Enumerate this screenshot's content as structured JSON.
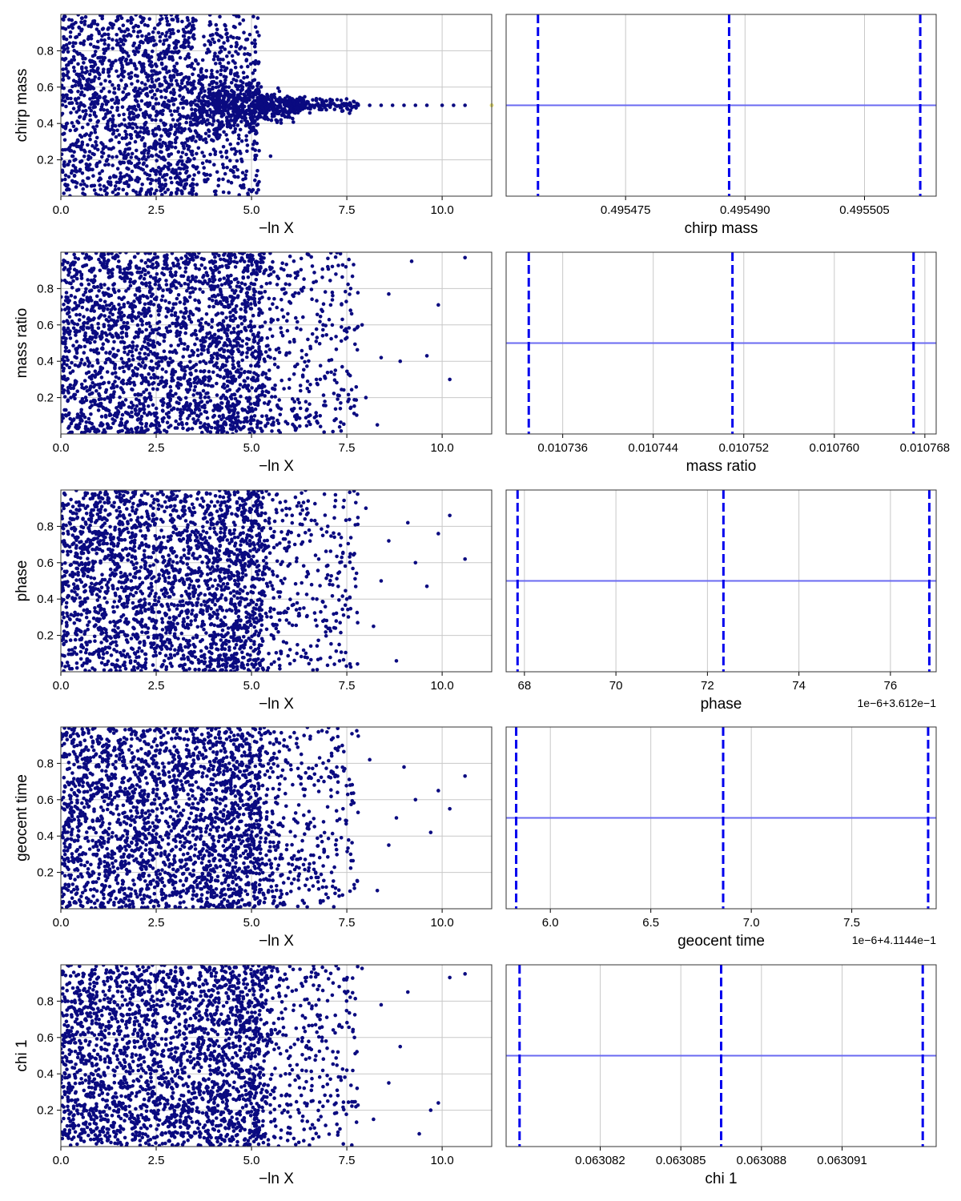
{
  "chart_data": [
    {
      "type": "scatter",
      "row": 0,
      "panel": "trace",
      "xlabel": "−ln X",
      "ylabel": "chirp mass",
      "xlim": [
        0,
        11.3
      ],
      "ylim": [
        0,
        1
      ],
      "xticks": [
        0,
        2.5,
        5,
        7.5,
        10
      ],
      "xtick_labels": [
        "0.0",
        "2.5",
        "5.0",
        "7.5",
        "10.0"
      ],
      "yticks": [
        0.2,
        0.4,
        0.6,
        0.8
      ],
      "ytick_labels": [
        "0.2",
        "0.4",
        "0.6",
        "0.8"
      ],
      "grid": true,
      "point_color": "#0a0a80",
      "converged_point": {
        "x": 11.3,
        "y": 0.5
      },
      "tail_points": [
        {
          "x": 5.6,
          "y": 0.56
        },
        {
          "x": 5.8,
          "y": 0.53
        },
        {
          "x": 6.0,
          "y": 0.51
        },
        {
          "x": 6.3,
          "y": 0.505
        },
        {
          "x": 6.6,
          "y": 0.5
        },
        {
          "x": 6.9,
          "y": 0.5
        },
        {
          "x": 7.2,
          "y": 0.5
        },
        {
          "x": 7.5,
          "y": 0.5
        },
        {
          "x": 7.8,
          "y": 0.5
        },
        {
          "x": 8.1,
          "y": 0.5
        },
        {
          "x": 8.4,
          "y": 0.5
        },
        {
          "x": 8.7,
          "y": 0.5
        },
        {
          "x": 9.0,
          "y": 0.5
        },
        {
          "x": 9.3,
          "y": 0.5
        },
        {
          "x": 9.6,
          "y": 0.5
        },
        {
          "x": 10.0,
          "y": 0.5
        },
        {
          "x": 10.3,
          "y": 0.5
        },
        {
          "x": 10.6,
          "y": 0.5
        },
        {
          "x": 4.8,
          "y": 0.9
        },
        {
          "x": 5.5,
          "y": 0.22
        },
        {
          "x": 5.2,
          "y": 0.25
        }
      ]
    },
    {
      "type": "line",
      "row": 0,
      "panel": "posterior",
      "xlabel": "chirp mass",
      "xlim": [
        0.49546,
        0.495514
      ],
      "xticks": [
        0.495475,
        0.49549,
        0.495505
      ],
      "xtick_labels": [
        "0.495475",
        "0.495490",
        "0.495505"
      ],
      "offset_text": "",
      "dashed_lines": [
        0.495464,
        0.495488,
        0.495512
      ],
      "horizontal_line_y": 0.5,
      "ylim": [
        0,
        1
      ]
    },
    {
      "type": "scatter",
      "row": 1,
      "panel": "trace",
      "xlabel": "−ln X",
      "ylabel": "mass ratio",
      "xlim": [
        0,
        11.3
      ],
      "ylim": [
        0,
        1
      ],
      "xticks": [
        0,
        2.5,
        5,
        7.5,
        10
      ],
      "xtick_labels": [
        "0.0",
        "2.5",
        "5.0",
        "7.5",
        "10.0"
      ],
      "yticks": [
        0.2,
        0.4,
        0.6,
        0.8
      ],
      "ytick_labels": [
        "0.2",
        "0.4",
        "0.6",
        "0.8"
      ],
      "grid": true,
      "point_color": "#0a0a80",
      "tail_points": [
        {
          "x": 10.6,
          "y": 0.97
        },
        {
          "x": 9.9,
          "y": 0.71
        },
        {
          "x": 10.2,
          "y": 0.3
        },
        {
          "x": 9.6,
          "y": 0.43
        },
        {
          "x": 9.2,
          "y": 0.95
        },
        {
          "x": 8.6,
          "y": 0.77
        },
        {
          "x": 8.4,
          "y": 0.42
        },
        {
          "x": 8.0,
          "y": 0.2
        },
        {
          "x": 8.9,
          "y": 0.4
        },
        {
          "x": 7.9,
          "y": 0.6
        },
        {
          "x": 7.6,
          "y": 0.8
        },
        {
          "x": 7.2,
          "y": 0.35
        },
        {
          "x": 7.0,
          "y": 0.92
        },
        {
          "x": 6.8,
          "y": 0.1
        },
        {
          "x": 6.6,
          "y": 0.55
        },
        {
          "x": 8.3,
          "y": 0.05
        }
      ]
    },
    {
      "type": "line",
      "row": 1,
      "panel": "posterior",
      "xlabel": "mass ratio",
      "xlim": [
        0.010731,
        0.010769
      ],
      "xticks": [
        0.010736,
        0.010744,
        0.010752,
        0.01076,
        0.010768
      ],
      "xtick_labels": [
        "0.010736",
        "0.010744",
        "0.010752",
        "0.010760",
        "0.010768"
      ],
      "offset_text": "",
      "dashed_lines": [
        0.010733,
        0.010751,
        0.010767
      ],
      "horizontal_line_y": 0.5,
      "ylim": [
        0,
        1
      ]
    },
    {
      "type": "scatter",
      "row": 2,
      "panel": "trace",
      "xlabel": "−ln X",
      "ylabel": "phase",
      "xlim": [
        0,
        11.3
      ],
      "ylim": [
        0,
        1
      ],
      "xticks": [
        0,
        2.5,
        5,
        7.5,
        10
      ],
      "xtick_labels": [
        "0.0",
        "2.5",
        "5.0",
        "7.5",
        "10.0"
      ],
      "yticks": [
        0.2,
        0.4,
        0.6,
        0.8
      ],
      "ytick_labels": [
        "0.2",
        "0.4",
        "0.6",
        "0.8"
      ],
      "grid": true,
      "point_color": "#0a0a80",
      "tail_points": [
        {
          "x": 10.6,
          "y": 0.62
        },
        {
          "x": 10.2,
          "y": 0.86
        },
        {
          "x": 9.9,
          "y": 0.76
        },
        {
          "x": 9.6,
          "y": 0.47
        },
        {
          "x": 9.1,
          "y": 0.82
        },
        {
          "x": 9.3,
          "y": 0.6
        },
        {
          "x": 8.8,
          "y": 0.06
        },
        {
          "x": 8.6,
          "y": 0.72
        },
        {
          "x": 8.4,
          "y": 0.5
        },
        {
          "x": 8.2,
          "y": 0.25
        },
        {
          "x": 8.0,
          "y": 0.9
        },
        {
          "x": 7.7,
          "y": 0.65
        },
        {
          "x": 7.5,
          "y": 0.4
        },
        {
          "x": 7.3,
          "y": 0.15
        },
        {
          "x": 7.0,
          "y": 0.8
        }
      ]
    },
    {
      "type": "line",
      "row": 2,
      "panel": "posterior",
      "xlabel": "phase",
      "xlim": [
        67.6,
        77.0
      ],
      "xticks": [
        68,
        70,
        72,
        74,
        76
      ],
      "xtick_labels": [
        "68",
        "70",
        "72",
        "74",
        "76"
      ],
      "offset_text": "1e−6+3.612e−1",
      "dashed_lines": [
        67.85,
        72.35,
        76.85
      ],
      "horizontal_line_y": 0.5,
      "ylim": [
        0,
        1
      ]
    },
    {
      "type": "scatter",
      "row": 3,
      "panel": "trace",
      "xlabel": "−ln X",
      "ylabel": "geocent time",
      "xlim": [
        0,
        11.3
      ],
      "ylim": [
        0,
        1
      ],
      "xticks": [
        0,
        2.5,
        5,
        7.5,
        10
      ],
      "xtick_labels": [
        "0.0",
        "2.5",
        "5.0",
        "7.5",
        "10.0"
      ],
      "yticks": [
        0.2,
        0.4,
        0.6,
        0.8
      ],
      "ytick_labels": [
        "0.2",
        "0.4",
        "0.6",
        "0.8"
      ],
      "grid": true,
      "point_color": "#0a0a80",
      "tail_points": [
        {
          "x": 10.6,
          "y": 0.73
        },
        {
          "x": 10.2,
          "y": 0.55
        },
        {
          "x": 9.9,
          "y": 0.65
        },
        {
          "x": 9.7,
          "y": 0.42
        },
        {
          "x": 9.3,
          "y": 0.6
        },
        {
          "x": 9.0,
          "y": 0.78
        },
        {
          "x": 8.8,
          "y": 0.5
        },
        {
          "x": 8.6,
          "y": 0.35
        },
        {
          "x": 8.3,
          "y": 0.1
        },
        {
          "x": 8.1,
          "y": 0.82
        },
        {
          "x": 7.8,
          "y": 0.95
        },
        {
          "x": 7.6,
          "y": 0.3
        },
        {
          "x": 7.4,
          "y": 0.55
        },
        {
          "x": 7.1,
          "y": 0.2
        },
        {
          "x": 6.9,
          "y": 0.7
        }
      ]
    },
    {
      "type": "line",
      "row": 3,
      "panel": "posterior",
      "xlabel": "geocent time",
      "xlim": [
        5.78,
        7.92
      ],
      "xticks": [
        6.0,
        6.5,
        7.0,
        7.5
      ],
      "xtick_labels": [
        "6.0",
        "6.5",
        "7.0",
        "7.5"
      ],
      "offset_text": "1e−6+4.1144e−1",
      "dashed_lines": [
        5.83,
        6.86,
        7.88
      ],
      "horizontal_line_y": 0.5,
      "ylim": [
        0,
        1
      ]
    },
    {
      "type": "scatter",
      "row": 4,
      "panel": "trace",
      "xlabel": "−ln X",
      "ylabel": "chi 1",
      "xlim": [
        0,
        11.3
      ],
      "ylim": [
        0,
        1
      ],
      "xticks": [
        0,
        2.5,
        5,
        7.5,
        10
      ],
      "xtick_labels": [
        "0.0",
        "2.5",
        "5.0",
        "7.5",
        "10.0"
      ],
      "yticks": [
        0.2,
        0.4,
        0.6,
        0.8
      ],
      "ytick_labels": [
        "0.2",
        "0.4",
        "0.6",
        "0.8"
      ],
      "grid": true,
      "point_color": "#0a0a80",
      "tail_points": [
        {
          "x": 10.6,
          "y": 0.95
        },
        {
          "x": 10.2,
          "y": 0.93
        },
        {
          "x": 9.9,
          "y": 0.24
        },
        {
          "x": 9.7,
          "y": 0.2
        },
        {
          "x": 9.4,
          "y": 0.07
        },
        {
          "x": 9.1,
          "y": 0.85
        },
        {
          "x": 8.9,
          "y": 0.55
        },
        {
          "x": 8.6,
          "y": 0.35
        },
        {
          "x": 8.4,
          "y": 0.78
        },
        {
          "x": 8.2,
          "y": 0.15
        },
        {
          "x": 7.9,
          "y": 0.98
        },
        {
          "x": 7.7,
          "y": 0.6
        },
        {
          "x": 7.5,
          "y": 0.42
        },
        {
          "x": 7.3,
          "y": 0.88
        },
        {
          "x": 7.0,
          "y": 0.25
        }
      ]
    },
    {
      "type": "line",
      "row": 4,
      "panel": "posterior",
      "xlabel": "chi 1",
      "xlim": [
        0.0630785,
        0.0630945
      ],
      "xticks": [
        0.063082,
        0.063085,
        0.063088,
        0.063091
      ],
      "xtick_labels": [
        "0.063082",
        "0.063085",
        "0.063088",
        "0.063091"
      ],
      "offset_text": "",
      "dashed_lines": [
        0.063079,
        0.0630865,
        0.063094
      ],
      "horizontal_line_y": 0.5,
      "ylim": [
        0,
        1
      ]
    }
  ],
  "colors": {
    "points": "#0a0a80",
    "dashed": "#0000ee",
    "hline": "#6a6af2",
    "grid": "#c8c8c8",
    "converged": "#e6e07a"
  }
}
